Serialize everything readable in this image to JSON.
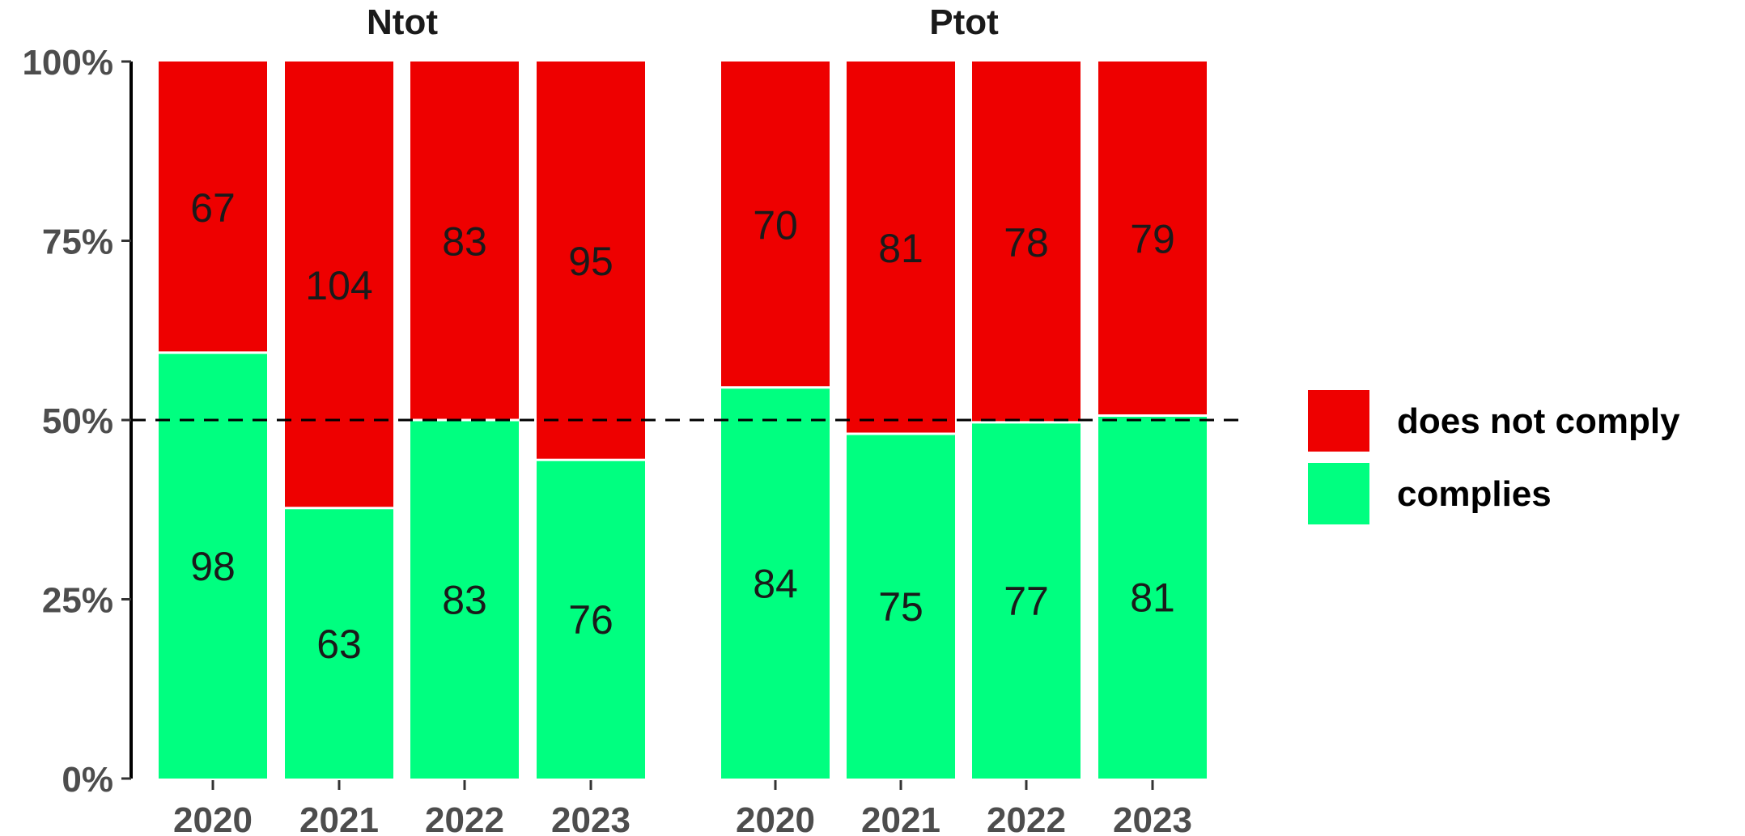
{
  "chart_data": {
    "type": "bar",
    "stacked": true,
    "normalized": true,
    "y_tick_labels": [
      "0%",
      "25%",
      "50%",
      "75%",
      "100%"
    ],
    "y_ticks": [
      0,
      0.25,
      0.5,
      0.75,
      1.0
    ],
    "ylim": [
      0,
      1
    ],
    "reference_line": 0.5,
    "categories": [
      "2020",
      "2021",
      "2022",
      "2023"
    ],
    "facets": [
      {
        "title": "Ntot",
        "series": [
          {
            "name": "complies",
            "values": [
              98,
              63,
              83,
              76
            ]
          },
          {
            "name": "does not comply",
            "values": [
              67,
              104,
              83,
              95
            ]
          }
        ]
      },
      {
        "title": "Ptot",
        "series": [
          {
            "name": "complies",
            "values": [
              84,
              75,
              77,
              81
            ]
          },
          {
            "name": "does not comply",
            "values": [
              70,
              81,
              78,
              79
            ]
          }
        ]
      }
    ],
    "legend": {
      "position": "right",
      "entries": [
        {
          "label": "does not comply",
          "color": "#ee0000"
        },
        {
          "label": "complies",
          "color": "#00ff80"
        }
      ]
    },
    "colors": {
      "complies": "#00ff80",
      "does not comply": "#ee0000"
    },
    "grid": false
  }
}
